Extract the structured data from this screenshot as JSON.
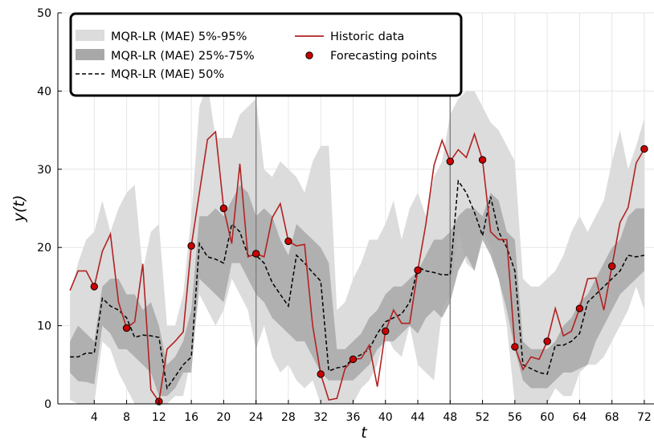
{
  "chart_data": {
    "type": "line",
    "title": "",
    "xlabel": "t",
    "ylabel": "y(t)",
    "xlim": [
      -0.5,
      73.2
    ],
    "ylim": [
      0,
      50
    ],
    "x_ticks": [
      4,
      8,
      12,
      16,
      20,
      24,
      28,
      32,
      36,
      40,
      44,
      48,
      52,
      56,
      60,
      64,
      68,
      72
    ],
    "y_ticks": [
      0,
      10,
      20,
      30,
      40,
      50
    ],
    "vertical_lines": [
      24,
      48
    ],
    "grid": true,
    "legend_position": "top-left",
    "colors": {
      "band_5_95": "#dcdcdc",
      "band_25_75": "#a8a8a8",
      "median": "#000000",
      "historic": "#b22222",
      "points": "#cc0000",
      "vline": "#808080",
      "grid": "#e6e6e6"
    },
    "legend": [
      {
        "label": "MQR-LR (MAE) 5%-95%",
        "kind": "band-light"
      },
      {
        "label": "MQR-LR (MAE) 25%-75%",
        "kind": "band-dark"
      },
      {
        "label": "MQR-LR (MAE) 50%",
        "kind": "dashed"
      },
      {
        "label": "Historic data",
        "kind": "line"
      },
      {
        "label": "Forecasting points",
        "kind": "marker"
      }
    ],
    "x": [
      1,
      2,
      3,
      4,
      5,
      6,
      7,
      8,
      9,
      10,
      11,
      12,
      13,
      14,
      15,
      16,
      17,
      18,
      19,
      20,
      21,
      22,
      23,
      24,
      25,
      26,
      27,
      28,
      29,
      30,
      31,
      32,
      33,
      34,
      35,
      36,
      37,
      38,
      39,
      40,
      41,
      42,
      43,
      44,
      45,
      46,
      47,
      48,
      49,
      50,
      51,
      52,
      53,
      54,
      55,
      56,
      57,
      58,
      59,
      60,
      61,
      62,
      63,
      64,
      65,
      66,
      67,
      68,
      69,
      70,
      71,
      72
    ],
    "series": [
      {
        "name": "MQR-LR (MAE) 5%-95%",
        "role": "band_outer",
        "lower": [
          0.5,
          0,
          0,
          0,
          8,
          7,
          4,
          2,
          0,
          0,
          0,
          0,
          0,
          1,
          1,
          6,
          14,
          12,
          10,
          12,
          16,
          14,
          12,
          7,
          10,
          6,
          4,
          5,
          3,
          2,
          3,
          0,
          0,
          0,
          0,
          0,
          2,
          3,
          5,
          9,
          7,
          6,
          10,
          5,
          4,
          3,
          12,
          14,
          22,
          18,
          17,
          22,
          20,
          16,
          10,
          0,
          0,
          0,
          0,
          0,
          2,
          1,
          1,
          4,
          5,
          5,
          6,
          8,
          10,
          12,
          15,
          12
        ],
        "upper": [
          14,
          18,
          21,
          22,
          26,
          22,
          25,
          27,
          28,
          17,
          22,
          23,
          10,
          10,
          14,
          24,
          38,
          41,
          34,
          34,
          34,
          37,
          38,
          39,
          30,
          29,
          31,
          30,
          29,
          27,
          31,
          33,
          33,
          12,
          13,
          16,
          18,
          21,
          21,
          23,
          26,
          21,
          25,
          27,
          24,
          29,
          31,
          37,
          39,
          40,
          40,
          38,
          36,
          35,
          33,
          31,
          16,
          15,
          15,
          16,
          17,
          19,
          22,
          24,
          22,
          24,
          26,
          31,
          35,
          30,
          33,
          36.5
        ]
      },
      {
        "name": "MQR-LR (MAE) 25%-75%",
        "role": "band_inner",
        "lower": [
          4,
          2.9,
          2.8,
          2.5,
          10,
          9,
          7,
          7,
          6,
          5,
          4,
          1,
          1,
          2,
          4,
          4,
          16,
          15,
          14,
          13,
          18,
          18,
          16,
          14,
          13,
          11,
          10,
          9,
          8,
          8,
          6,
          4,
          3,
          3,
          3,
          3,
          4,
          5,
          7,
          8,
          8,
          9,
          10,
          9,
          11,
          12,
          11,
          13,
          17,
          19,
          17,
          21,
          19,
          16,
          12,
          7,
          3,
          2,
          2,
          2,
          3,
          4,
          4,
          4.5,
          5,
          8,
          10,
          12,
          14,
          15,
          16,
          17
        ],
        "upper": [
          8,
          10,
          9,
          8,
          15,
          16,
          16,
          14,
          14,
          12,
          13,
          10,
          5,
          6,
          8,
          12,
          24,
          24,
          25,
          24,
          26,
          28,
          27,
          24,
          25,
          24,
          21,
          19,
          23,
          22,
          21,
          20,
          18,
          7,
          7,
          8,
          9,
          11,
          12,
          14,
          15,
          15,
          16,
          17,
          19,
          21,
          21,
          22,
          24,
          25,
          25,
          24,
          27,
          26,
          22,
          21,
          8,
          7,
          7,
          7,
          8,
          10,
          11,
          13,
          14,
          16,
          18,
          20,
          21,
          24,
          25,
          25
        ]
      },
      {
        "name": "MQR-LR (MAE) 50%",
        "role": "median",
        "values": [
          6,
          6,
          6.5,
          6.5,
          13.5,
          12.5,
          12,
          11,
          8.5,
          8.8,
          8.7,
          8.5,
          2,
          3.5,
          5,
          6,
          20.5,
          18.8,
          18.5,
          18,
          23,
          22,
          19,
          19,
          18,
          15.5,
          14,
          12.5,
          19,
          18,
          16.8,
          15.7,
          4.2,
          4.6,
          4.8,
          5.8,
          6.3,
          7,
          9,
          10.5,
          11,
          11.5,
          13,
          17.5,
          17,
          16.8,
          16.5,
          16.5,
          28.5,
          27,
          24.5,
          21.5,
          26.5,
          22,
          20,
          17,
          5,
          4.5,
          4,
          3.8,
          7.5,
          7.5,
          8,
          9,
          13,
          14,
          15,
          16,
          17,
          19,
          18.8,
          19
        ]
      },
      {
        "name": "Historic data",
        "role": "historic",
        "values": [
          14.5,
          17,
          17,
          15,
          19.5,
          21.7,
          13,
          9.7,
          10.5,
          17.9,
          1.8,
          0.3,
          7,
          8,
          9.2,
          20.2,
          27,
          33.8,
          34.8,
          25,
          20.5,
          30.7,
          18.8,
          19.2,
          18.8,
          23.8,
          25.6,
          20.8,
          20.2,
          20.4,
          10,
          3.8,
          0.5,
          0.7,
          4.5,
          5.7,
          5.8,
          7.5,
          2.2,
          9.3,
          12,
          10.3,
          10.3,
          17.1,
          23,
          30.5,
          33.7,
          31,
          32.5,
          31.5,
          34.5,
          31.2,
          22,
          21,
          21,
          7.3,
          4.4,
          6,
          5.7,
          8,
          12.2,
          8.7,
          9.3,
          12.2,
          16,
          16.1,
          12,
          17.6,
          23.2,
          25.1,
          30.8,
          32.6
        ]
      },
      {
        "name": "Forecasting points",
        "role": "points",
        "points": [
          [
            4,
            15
          ],
          [
            8,
            9.7
          ],
          [
            12,
            0.3
          ],
          [
            16,
            20.2
          ],
          [
            20,
            25
          ],
          [
            24,
            19.2
          ],
          [
            28,
            20.8
          ],
          [
            32,
            3.8
          ],
          [
            36,
            5.7
          ],
          [
            40,
            9.3
          ],
          [
            44,
            17.1
          ],
          [
            48,
            31
          ],
          [
            52,
            31.2
          ],
          [
            56,
            7.3
          ],
          [
            60,
            8
          ],
          [
            64,
            12.2
          ],
          [
            68,
            17.6
          ],
          [
            72,
            32.6
          ]
        ]
      }
    ]
  }
}
